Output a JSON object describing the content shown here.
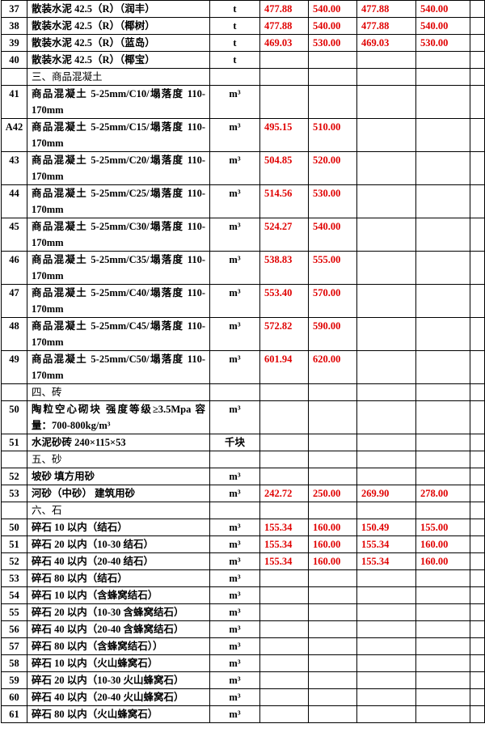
{
  "table": {
    "rows": [
      {
        "no": "37",
        "name": "散装水泥 42.5（R）（润丰）",
        "unit": "t",
        "prices": [
          "477.88",
          "540.00",
          "477.88",
          "540.00"
        ]
      },
      {
        "no": "38",
        "name": "散装水泥 42.5（R）（椰树）",
        "unit": "t",
        "prices": [
          "477.88",
          "540.00",
          "477.88",
          "540.00"
        ]
      },
      {
        "no": "39",
        "name": "散装水泥 42.5（R）（蓝岛）",
        "unit": "t",
        "prices": [
          "469.03",
          "530.00",
          "469.03",
          "530.00"
        ]
      },
      {
        "no": "40",
        "name": "散装水泥 42.5（R）（椰宝）",
        "unit": "t"
      },
      {
        "section": "三、商品混凝土"
      },
      {
        "no": "41",
        "name": "商品混凝土 5-25mm/C10/塌落度 110-170mm",
        "unit": "m³"
      },
      {
        "no": "A42",
        "name": "商品混凝土 5-25mm/C15/塌落度 110-170mm",
        "unit": "m³",
        "prices": [
          "495.15",
          "510.00"
        ]
      },
      {
        "no": "43",
        "name": "商品混凝土 5-25mm/C20/塌落度 110-170mm",
        "unit": "m³",
        "prices": [
          "504.85",
          "520.00"
        ]
      },
      {
        "no": "44",
        "name": "商品混凝土 5-25mm/C25/塌落度 110-170mm",
        "unit": "m³",
        "prices": [
          "514.56",
          "530.00"
        ]
      },
      {
        "no": "45",
        "name": "商品混凝土 5-25mm/C30/塌落度 110-170mm",
        "unit": "m³",
        "prices": [
          "524.27",
          "540.00"
        ]
      },
      {
        "no": "46",
        "name": "商品混凝土 5-25mm/C35/塌落度 110-170mm",
        "unit": "m³",
        "prices": [
          "538.83",
          "555.00"
        ]
      },
      {
        "no": "47",
        "name": "商品混凝土 5-25mm/C40/塌落度 110-170mm",
        "unit": "m³",
        "prices": [
          "553.40",
          "570.00"
        ]
      },
      {
        "no": "48",
        "name": "商品混凝土 5-25mm/C45/塌落度 110-170mm",
        "unit": "m³",
        "prices": [
          "572.82",
          "590.00"
        ]
      },
      {
        "no": "49",
        "name": "商品混凝土 5-25mm/C50/塌落度 110-170mm",
        "unit": "m³",
        "prices": [
          "601.94",
          "620.00"
        ]
      },
      {
        "section": "四、砖"
      },
      {
        "no": "50",
        "name": "陶粒空心砌块 强度等级≥3.5Mpa 容量：700-800kg/m³",
        "unit": "m³"
      },
      {
        "no": "51",
        "name": "水泥砂砖 240×115×53",
        "unit": "千块"
      },
      {
        "section": "五、砂"
      },
      {
        "no": "52",
        "name": "坡砂 填方用砂",
        "unit": "m³"
      },
      {
        "no": "53",
        "name": "河砂（中砂） 建筑用砂",
        "unit": "m³",
        "prices": [
          "242.72",
          "250.00",
          "269.90",
          "278.00"
        ]
      },
      {
        "section": "六、石"
      },
      {
        "no": "50",
        "name": "碎石 10 以内（结石）",
        "unit": "m³",
        "prices": [
          "155.34",
          "160.00",
          "150.49",
          "155.00"
        ]
      },
      {
        "no": "51",
        "name": "碎石 20 以内（10-30 结石）",
        "unit": "m³",
        "prices": [
          "155.34",
          "160.00",
          "155.34",
          "160.00"
        ]
      },
      {
        "no": "52",
        "name": "碎石 40 以内（20-40 结石）",
        "unit": "m³",
        "prices": [
          "155.34",
          "160.00",
          "155.34",
          "160.00"
        ]
      },
      {
        "no": "53",
        "name": "碎石 80 以内（结石）",
        "unit": "m³"
      },
      {
        "no": "54",
        "name": "碎石 10 以内（含蜂窝结石）",
        "unit": "m³"
      },
      {
        "no": "55",
        "name": "碎石 20 以内（10-30 含蜂窝结石）",
        "unit": "m³"
      },
      {
        "no": "56",
        "name": "碎石 40 以内（20-40 含蜂窝结石）",
        "unit": "m³"
      },
      {
        "no": "57",
        "name": "碎石 80 以内（含蜂窝结石））",
        "unit": "m³"
      },
      {
        "no": "58",
        "name": "碎石 10 以内（火山蜂窝石）",
        "unit": "m³"
      },
      {
        "no": "59",
        "name": "碎石 20 以内（10-30 火山蜂窝石）",
        "unit": "m³"
      },
      {
        "no": "60",
        "name": "碎石 40 以内（20-40 火山蜂窝石）",
        "unit": "m³"
      },
      {
        "no": "61",
        "name": "碎石 80 以内（火山蜂窝石）",
        "unit": "m³"
      }
    ]
  }
}
